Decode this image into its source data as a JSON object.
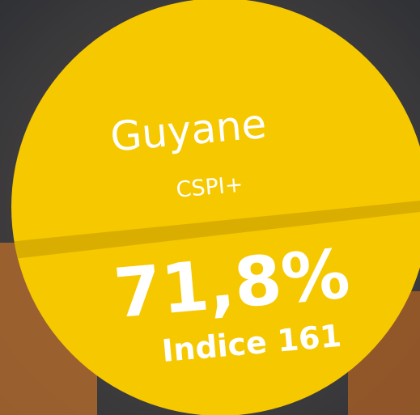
{
  "card": {
    "region": "Guyane",
    "segment": "CSPI+",
    "share": "71,8%",
    "index_label": "Indice 161"
  }
}
